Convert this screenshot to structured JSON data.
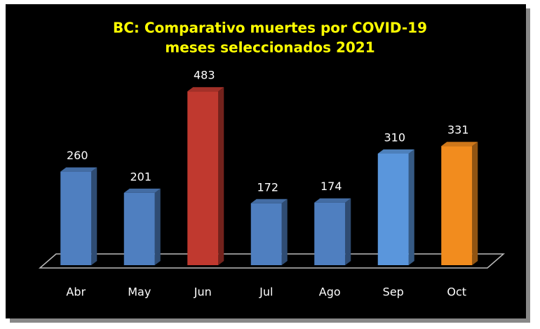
{
  "chart_data": {
    "type": "bar3d",
    "title": "BC: Comparativo muertes por COVID-19",
    "subtitle": "meses seleccionados 2021",
    "categories": [
      "Abr",
      "May",
      "Jun",
      "Jul",
      "Ago",
      "Sep",
      "Oct"
    ],
    "values": [
      260,
      201,
      483,
      172,
      174,
      310,
      331
    ],
    "colors": [
      "#4f7fc0",
      "#4f7fc0",
      "#c0392f",
      "#4f7fc0",
      "#4f7fc0",
      "#5a96dc",
      "#f28c1e"
    ]
  }
}
